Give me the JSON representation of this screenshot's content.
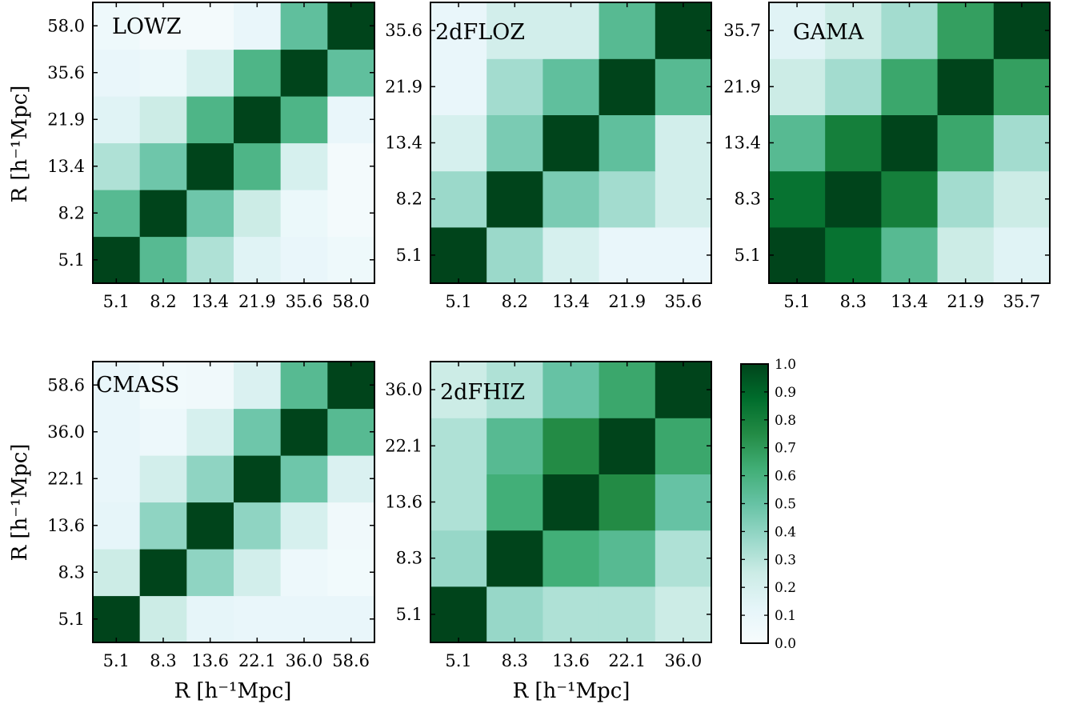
{
  "figure": {
    "x_axis_label": "R   [h⁻¹Mpc]",
    "y_axis_label": "R   [h⁻¹Mpc]"
  },
  "chart_data": [
    {
      "type": "heatmap",
      "title": "LOWZ",
      "ticks": [
        "5.1",
        "8.2",
        "13.4",
        "21.9",
        "35.6",
        "58.0"
      ],
      "matrix": [
        [
          1.0,
          0.55,
          0.32,
          0.15,
          0.1,
          0.06
        ],
        [
          0.55,
          1.0,
          0.48,
          0.25,
          0.08,
          0.03
        ],
        [
          0.32,
          0.48,
          1.0,
          0.58,
          0.2,
          0.03
        ],
        [
          0.15,
          0.25,
          0.58,
          1.0,
          0.58,
          0.1
        ],
        [
          0.1,
          0.08,
          0.2,
          0.58,
          1.0,
          0.52
        ],
        [
          0.06,
          0.03,
          0.03,
          0.1,
          0.52,
          1.0
        ]
      ]
    },
    {
      "type": "heatmap",
      "title": "2dFLOZ",
      "ticks": [
        "5.1",
        "8.2",
        "13.4",
        "21.9",
        "35.6"
      ],
      "matrix": [
        [
          1.0,
          0.37,
          0.2,
          0.1,
          0.1
        ],
        [
          0.37,
          1.0,
          0.45,
          0.35,
          0.22
        ],
        [
          0.2,
          0.45,
          1.0,
          0.52,
          0.22
        ],
        [
          0.1,
          0.35,
          0.52,
          1.0,
          0.55
        ],
        [
          0.1,
          0.22,
          0.22,
          0.55,
          1.0
        ]
      ]
    },
    {
      "type": "heatmap",
      "title": "GAMA",
      "ticks": [
        "5.1",
        "8.3",
        "13.4",
        "21.9",
        "35.7"
      ],
      "matrix": [
        [
          1.0,
          0.85,
          0.55,
          0.25,
          0.15
        ],
        [
          0.85,
          1.0,
          0.8,
          0.35,
          0.25
        ],
        [
          0.55,
          0.8,
          1.0,
          0.65,
          0.35
        ],
        [
          0.25,
          0.35,
          0.65,
          1.0,
          0.68
        ],
        [
          0.15,
          0.25,
          0.35,
          0.68,
          1.0
        ]
      ]
    },
    {
      "type": "heatmap",
      "title": "CMASS",
      "ticks": [
        "5.1",
        "8.3",
        "13.6",
        "22.1",
        "36.0",
        "58.6"
      ],
      "matrix": [
        [
          1.0,
          0.25,
          0.12,
          0.1,
          0.1,
          0.1
        ],
        [
          0.25,
          1.0,
          0.4,
          0.22,
          0.07,
          0.04
        ],
        [
          0.12,
          0.4,
          1.0,
          0.4,
          0.2,
          0.05
        ],
        [
          0.1,
          0.22,
          0.4,
          1.0,
          0.48,
          0.18
        ],
        [
          0.1,
          0.07,
          0.2,
          0.48,
          1.0,
          0.55
        ],
        [
          0.1,
          0.04,
          0.05,
          0.18,
          0.55,
          1.0
        ]
      ]
    },
    {
      "type": "heatmap",
      "title": "2dFHIZ",
      "ticks": [
        "5.1",
        "8.3",
        "13.6",
        "22.1",
        "36.0"
      ],
      "matrix": [
        [
          1.0,
          0.38,
          0.32,
          0.32,
          0.25
        ],
        [
          0.38,
          1.0,
          0.62,
          0.55,
          0.32
        ],
        [
          0.32,
          0.62,
          1.0,
          0.75,
          0.5
        ],
        [
          0.32,
          0.55,
          0.75,
          1.0,
          0.65
        ],
        [
          0.25,
          0.32,
          0.5,
          0.65,
          1.0
        ]
      ]
    }
  ],
  "colorbar": {
    "colormap": "BuGn",
    "colors": [
      "#f7fcfd",
      "#e5f5f9",
      "#ccece6",
      "#99d8c9",
      "#66c2a4",
      "#41ae76",
      "#238b45",
      "#006d2c",
      "#00441b"
    ],
    "ticks": [
      "0.0",
      "0.1",
      "0.2",
      "0.3",
      "0.4",
      "0.5",
      "0.6",
      "0.7",
      "0.8",
      "0.9",
      "1.0"
    ],
    "range": [
      0,
      1
    ]
  }
}
